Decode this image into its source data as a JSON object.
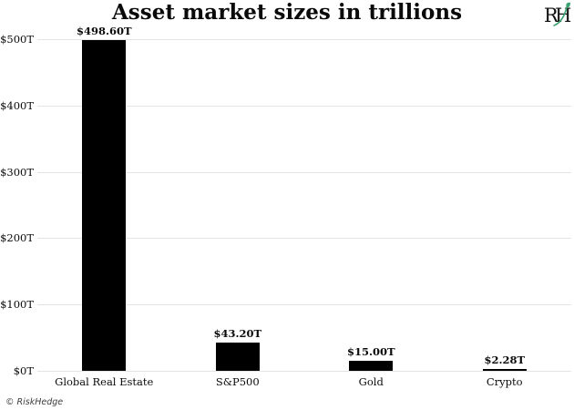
{
  "title": "Asset market sizes in trillions",
  "logo": {
    "letter_r": "R",
    "letter_h": "H",
    "green_accent": "#3ba272",
    "ink": "#111111"
  },
  "footer": {
    "copyright": "© RiskHedge"
  },
  "chart_data": {
    "type": "bar",
    "title": "Asset market sizes in trillions",
    "categories": [
      "Global Real Estate",
      "S&P500",
      "Gold",
      "Crypto"
    ],
    "values": [
      498.6,
      43.2,
      15.0,
      2.28
    ],
    "data_labels": [
      "$498.60T",
      "$43.20T",
      "$15.00T",
      "$2.28T"
    ],
    "y_ticks": [
      {
        "value": 0,
        "label": "$0T"
      },
      {
        "value": 100,
        "label": "$100T"
      },
      {
        "value": 200,
        "label": "$200T"
      },
      {
        "value": 300,
        "label": "$300T"
      },
      {
        "value": 400,
        "label": "$400T"
      },
      {
        "value": 500,
        "label": "$500T"
      }
    ],
    "xlabel": "",
    "ylabel": "",
    "ylim": [
      0,
      500
    ],
    "grid": true,
    "legend": false,
    "bar_color": "#000000",
    "gridline_color": "#e4e4e4"
  }
}
